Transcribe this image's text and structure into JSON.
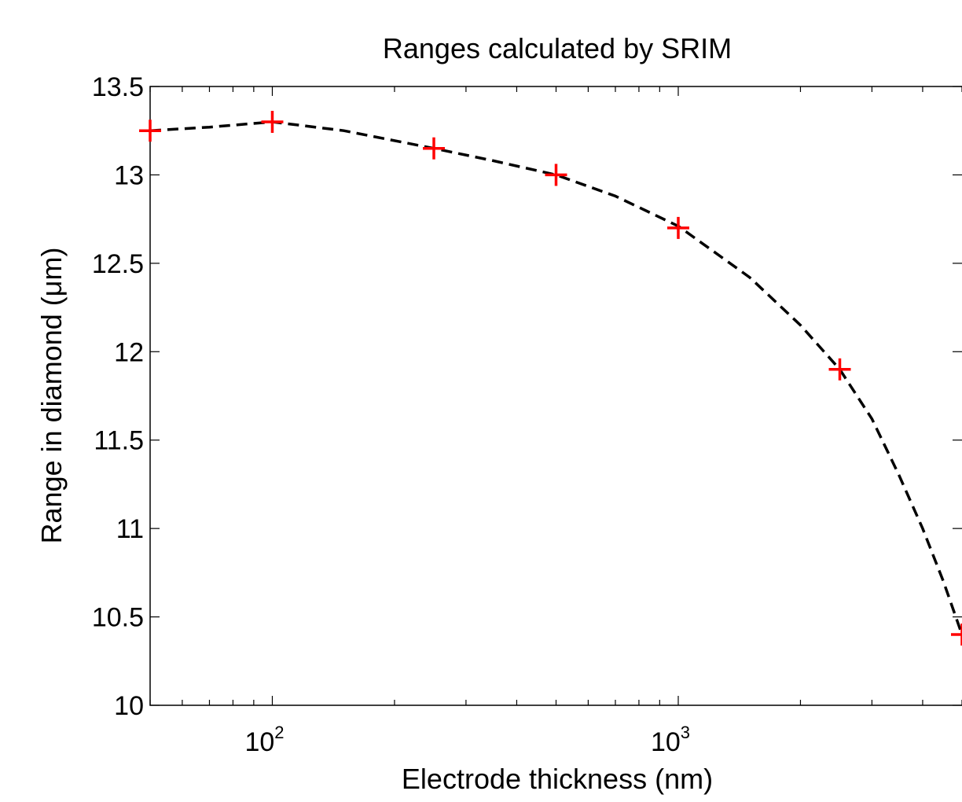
{
  "chart_data": {
    "type": "line",
    "title": "Ranges calculated by SRIM",
    "xlabel": "Electrode thickness (nm)",
    "ylabel": "Range in diamond (μm)",
    "x_scale": "log",
    "xlim": [
      50,
      5000
    ],
    "ylim": [
      10,
      13.5
    ],
    "grid": false,
    "x_ticks": [
      {
        "value": 100,
        "base": "10",
        "exp": "2"
      },
      {
        "value": 1000,
        "base": "10",
        "exp": "3"
      }
    ],
    "y_ticks": [
      {
        "value": 10,
        "label": "10"
      },
      {
        "value": 10.5,
        "label": "10.5"
      },
      {
        "value": 11,
        "label": "11"
      },
      {
        "value": 11.5,
        "label": "11.5"
      },
      {
        "value": 12,
        "label": "12"
      },
      {
        "value": 12.5,
        "label": "12.5"
      },
      {
        "value": 13,
        "label": "13"
      },
      {
        "value": 13.5,
        "label": "13.5"
      }
    ],
    "series": [
      {
        "style": "red plus markers",
        "color": "#ff0000",
        "x": [
          50,
          100,
          250,
          500,
          1000,
          2500,
          5000
        ],
        "y": [
          13.25,
          13.3,
          13.15,
          13.0,
          12.7,
          11.9,
          10.4
        ]
      },
      {
        "style": "black dashed fit curve",
        "color": "#000000",
        "x": [
          50,
          70,
          100,
          150,
          250,
          350,
          500,
          700,
          1000,
          1500,
          2000,
          2500,
          3000,
          3500,
          4000,
          4500,
          5000
        ],
        "y": [
          13.25,
          13.27,
          13.3,
          13.25,
          13.15,
          13.08,
          13.0,
          12.88,
          12.71,
          12.42,
          12.15,
          11.9,
          11.62,
          11.3,
          11.0,
          10.7,
          10.4
        ]
      }
    ]
  }
}
